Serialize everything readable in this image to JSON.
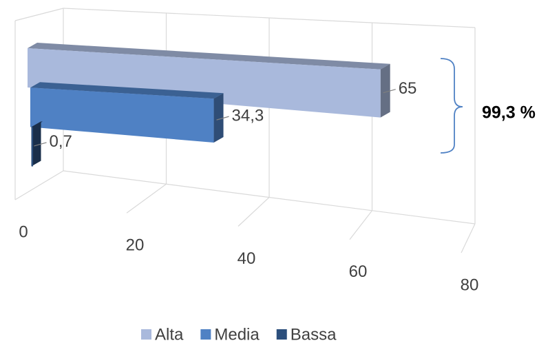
{
  "chart_data": {
    "type": "bar3d-horizontal",
    "series": [
      {
        "name": "Alta",
        "color": "#a9b9dc",
        "values": [
          65
        ],
        "value_labels": [
          "65"
        ]
      },
      {
        "name": "Media",
        "color": "#4f81c4",
        "values": [
          34.3
        ],
        "value_labels": [
          "34,3"
        ]
      },
      {
        "name": "Bassa",
        "color": "#2c4f7c",
        "values": [
          0.7
        ],
        "value_labels": [
          "0,7"
        ]
      }
    ],
    "xlim": [
      0,
      80
    ],
    "xticks": [
      0,
      20,
      40,
      60,
      80
    ],
    "grid": true,
    "legend": "bottom",
    "annotation": "99,3 %"
  }
}
